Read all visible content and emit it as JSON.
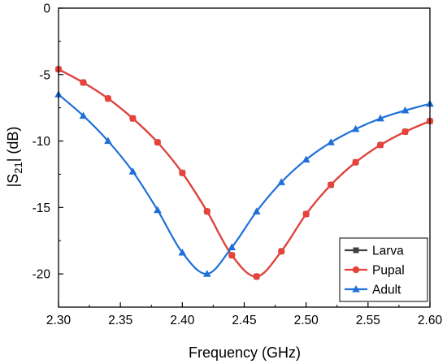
{
  "chart_data": {
    "type": "line",
    "xlabel": "Frequency (GHz)",
    "ylabel": "|S21| (dB)",
    "ylabel_main": "|S",
    "ylabel_sub": "21",
    "ylabel_tail": "| (dB)",
    "xlim": [
      2.3,
      2.6
    ],
    "ylim": [
      -22.5,
      0
    ],
    "x_ticks": [
      "2.30",
      "2.35",
      "2.40",
      "2.45",
      "2.50",
      "2.55",
      "2.60"
    ],
    "y_ticks": [
      "0",
      "-5",
      "-10",
      "-15",
      "-20"
    ],
    "grid": false,
    "legend_position": "bottom-right",
    "series": [
      {
        "name": "Larva",
        "color": "#404040",
        "marker": "square",
        "x": [
          2.3,
          2.32,
          2.34,
          2.36,
          2.38,
          2.4,
          2.42,
          2.44,
          2.46,
          2.48,
          2.5,
          2.52,
          2.54,
          2.56,
          2.58,
          2.6
        ],
        "y": [
          -4.6,
          -5.6,
          -6.8,
          -8.3,
          -10.1,
          -12.4,
          -15.3,
          -18.6,
          -20.2,
          -18.3,
          -15.5,
          -13.3,
          -11.6,
          -10.3,
          -9.3,
          -8.5
        ]
      },
      {
        "name": "Pupal",
        "color": "#e8423b",
        "marker": "circle",
        "x": [
          2.3,
          2.32,
          2.34,
          2.36,
          2.38,
          2.4,
          2.42,
          2.44,
          2.46,
          2.48,
          2.5,
          2.52,
          2.54,
          2.56,
          2.58,
          2.6
        ],
        "y": [
          -4.6,
          -5.6,
          -6.8,
          -8.3,
          -10.1,
          -12.4,
          -15.3,
          -18.6,
          -20.2,
          -18.3,
          -15.5,
          -13.3,
          -11.6,
          -10.3,
          -9.3,
          -8.5
        ]
      },
      {
        "name": "Adult",
        "color": "#1f6fd9",
        "marker": "triangle",
        "x": [
          2.3,
          2.32,
          2.34,
          2.36,
          2.38,
          2.4,
          2.42,
          2.44,
          2.46,
          2.48,
          2.5,
          2.52,
          2.54,
          2.56,
          2.58,
          2.6
        ],
        "y": [
          -6.5,
          -8.1,
          -10.0,
          -12.3,
          -15.2,
          -18.4,
          -20.0,
          -18.0,
          -15.3,
          -13.1,
          -11.4,
          -10.1,
          -9.1,
          -8.3,
          -7.7,
          -7.2
        ]
      }
    ]
  }
}
